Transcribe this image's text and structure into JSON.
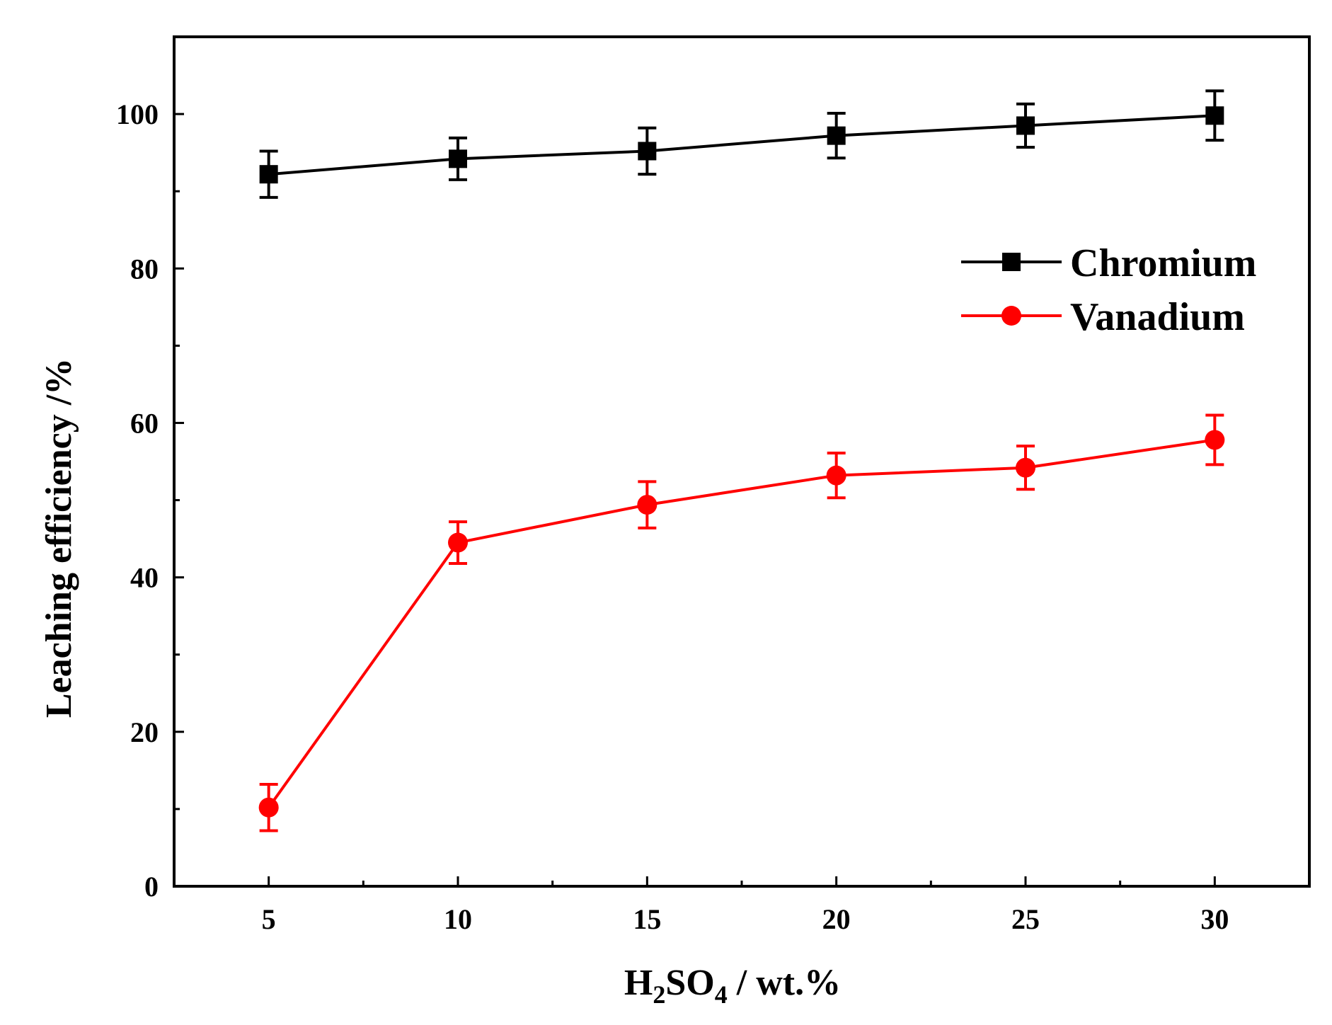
{
  "chart_data": {
    "type": "line",
    "xlabel": {
      "base": "H",
      "sub1": "2",
      "mid": "SO",
      "sub2": "4",
      "tail": " / wt.%"
    },
    "ylabel": "Leaching efficiency /%",
    "x": [
      5,
      10,
      15,
      20,
      25,
      30
    ],
    "xlim": [
      2.5,
      32.5
    ],
    "ylim": [
      0,
      110
    ],
    "xticks": [
      5,
      10,
      15,
      20,
      25,
      30
    ],
    "xtick_labels": [
      "5",
      "10",
      "15",
      "20",
      "25",
      "30"
    ],
    "xminor": [
      7.5,
      12.5,
      17.5,
      22.5,
      27.5
    ],
    "yticks": [
      0,
      20,
      40,
      60,
      80,
      100
    ],
    "ytick_labels": [
      "0",
      "20",
      "40",
      "60",
      "80",
      "100"
    ],
    "yminor": [
      10,
      30,
      50,
      70,
      90
    ],
    "legend_position": "upper-right",
    "series": [
      {
        "name": "Chromium",
        "color": "#000000",
        "marker": "square",
        "values": [
          92.2,
          94.2,
          95.2,
          97.2,
          98.5,
          99.8
        ],
        "errors": [
          3.0,
          2.7,
          3.0,
          2.9,
          2.8,
          3.2
        ]
      },
      {
        "name": "Vanadium",
        "color": "#ff0000",
        "marker": "circle",
        "values": [
          10.2,
          44.5,
          49.4,
          53.2,
          54.2,
          57.8
        ],
        "errors": [
          3.0,
          2.7,
          3.0,
          2.9,
          2.8,
          3.2
        ]
      }
    ]
  }
}
